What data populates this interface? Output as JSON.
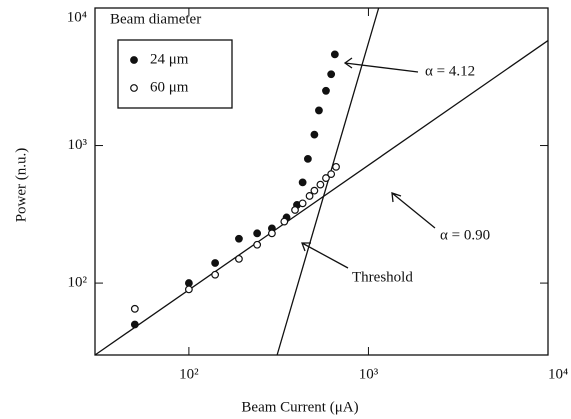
{
  "chart_data": {
    "type": "scatter",
    "x_label": "Beam Current (μA)",
    "y_label": "Power (n.u.)",
    "xscale": "log",
    "yscale": "log",
    "xlim": [
      30,
      10000
    ],
    "ylim": [
      30,
      10000
    ],
    "xticks": [
      {
        "value": 100,
        "label": "10²"
      },
      {
        "value": 1000,
        "label": "10³"
      },
      {
        "value": 10000,
        "label": "10⁴"
      }
    ],
    "yticks": [
      {
        "value": 100,
        "label": "10²"
      },
      {
        "value": 1000,
        "label": "10³"
      },
      {
        "value": 10000,
        "label": "10⁴"
      }
    ],
    "legend_title": "Beam diameter",
    "legend": "upper left",
    "series": [
      {
        "name": "24 μm",
        "color": "#111111",
        "marker": "filled",
        "x": [
          50,
          100,
          140,
          190,
          240,
          290,
          350,
          400,
          430,
          460,
          500,
          530,
          580,
          620,
          650
        ],
        "values": [
          50,
          100,
          140,
          210,
          230,
          250,
          300,
          370,
          540,
          800,
          1200,
          1800,
          2500,
          3300,
          4600
        ]
      },
      {
        "name": "60 μm",
        "color": "#111111",
        "marker": "open",
        "x": [
          50,
          100,
          140,
          190,
          240,
          290,
          340,
          390,
          430,
          470,
          500,
          540,
          580,
          620,
          660
        ],
        "values": [
          65,
          90,
          115,
          150,
          190,
          230,
          280,
          340,
          380,
          430,
          470,
          520,
          580,
          620,
          700
        ]
      }
    ],
    "lines": [
      {
        "label": "α = 0.90",
        "x": [
          30,
          10000
        ],
        "y": [
          30,
          5800
        ]
      },
      {
        "label": "α = 4.12",
        "x": [
          310,
          1140
        ],
        "y": [
          30,
          10000
        ]
      }
    ],
    "annotations": [
      "Threshold"
    ]
  }
}
